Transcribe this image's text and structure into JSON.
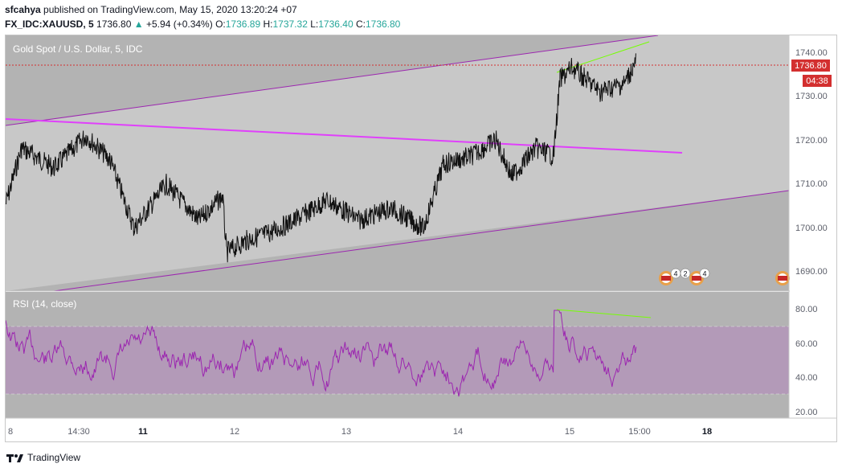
{
  "header": {
    "publisher": "sfcahya",
    "published_text": " published on TradingView.com, May 15, 2020 13:20:24 +07",
    "symbol": "FX_IDC:XAUUSD, 5",
    "last": "1736.80",
    "change": "+5.94 (+0.34%)",
    "o_label": "O:",
    "o_value": "1736.89",
    "h_label": "H:",
    "h_value": "1737.32",
    "l_label": "L:",
    "l_value": "1736.40",
    "c_label": "C:",
    "c_value": "1736.80"
  },
  "price_pane": {
    "title": "Gold Spot / U.S. Dollar, 5, IDC",
    "axis_ticks": [
      "1740.00",
      "1730.00",
      "1720.00",
      "1710.00",
      "1700.00",
      "1690.00"
    ],
    "current_price_badge": "1736.80",
    "countdown_badge": "04:38",
    "event_markers": [
      "4",
      "2",
      "4"
    ]
  },
  "rsi_pane": {
    "title": "RSI (14, close)",
    "axis_ticks": [
      "80.00",
      "60.00",
      "40.00",
      "20.00"
    ]
  },
  "time_axis": {
    "labels": [
      "8",
      "14:30",
      "11",
      "12",
      "13",
      "14",
      "15",
      "15:00",
      "18"
    ],
    "bold": [
      false,
      false,
      true,
      false,
      false,
      false,
      false,
      false,
      true
    ]
  },
  "footer": {
    "brand": "TradingView"
  },
  "colors": {
    "price_line": "#d32f2f",
    "channel": "#9c27b0",
    "trend": "#e040fb",
    "divergence": "#76ff03",
    "rsi_line": "#9c27b0",
    "rsi_band": "#ce93d8",
    "background_dark": "#b2b2b2",
    "background_light": "#c8c8c8"
  }
}
